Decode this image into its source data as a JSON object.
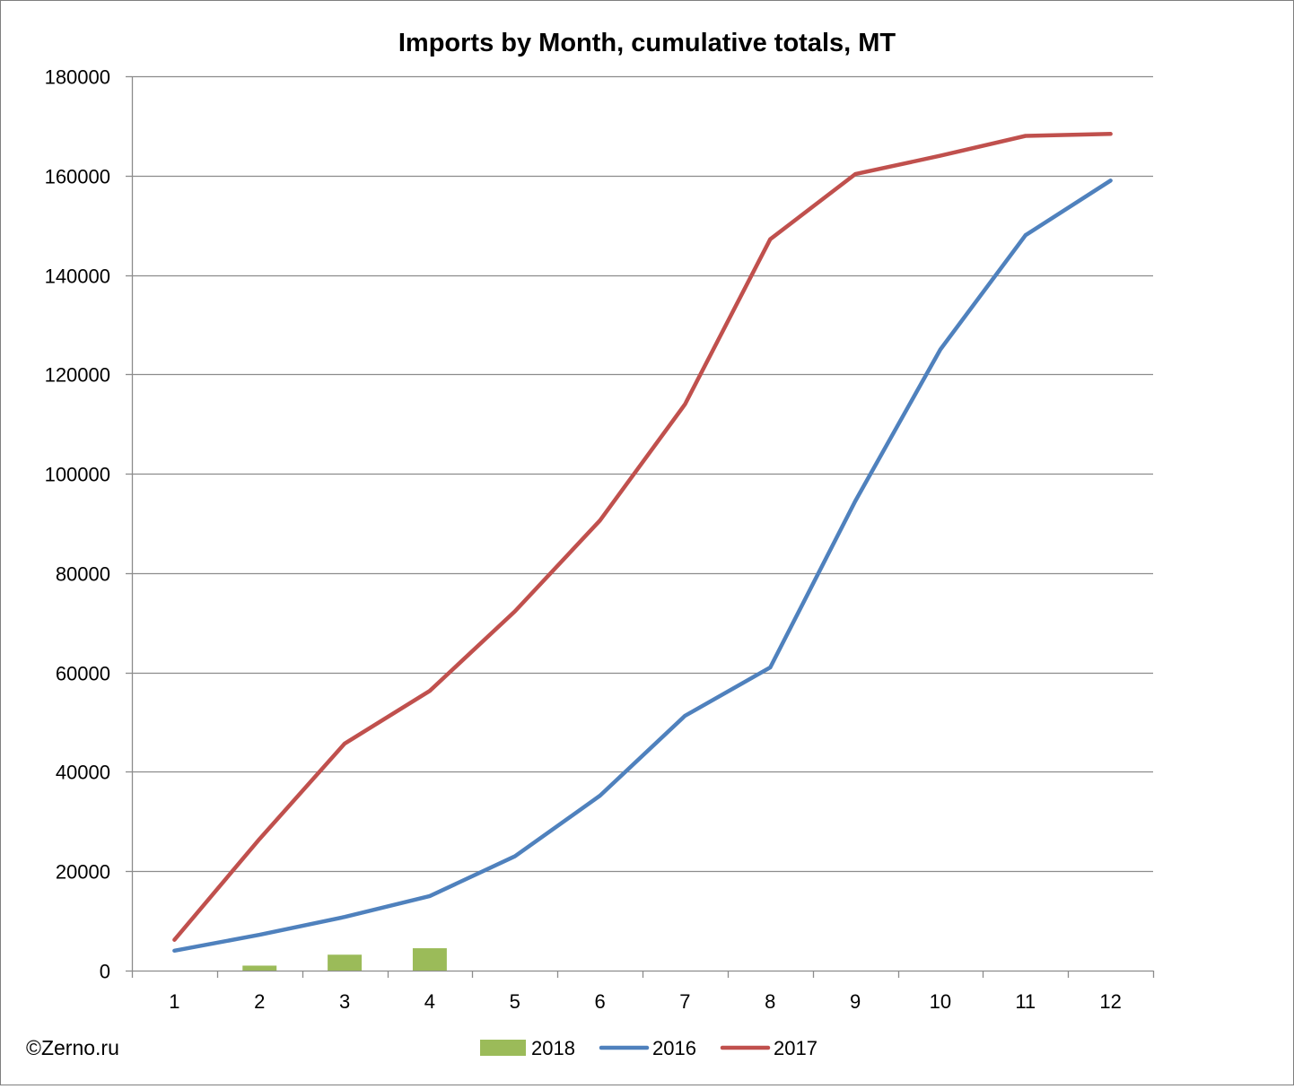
{
  "chart_data": {
    "type": "bar+line",
    "title": "Imports by Month, cumulative totals, MT",
    "categories": [
      "1",
      "2",
      "3",
      "4",
      "5",
      "6",
      "7",
      "8",
      "9",
      "10",
      "11",
      "12"
    ],
    "ylim": [
      0,
      180000
    ],
    "y_ticks": [
      "0",
      "20000",
      "40000",
      "60000",
      "80000",
      "100000",
      "120000",
      "140000",
      "160000",
      "180000"
    ],
    "grid": true,
    "legend_position": "bottom",
    "series": [
      {
        "name": "2018",
        "kind": "bar",
        "color": "#9bbb59",
        "values": [
          null,
          1000,
          3200,
          4500,
          null,
          null,
          null,
          null,
          null,
          null,
          null,
          null
        ]
      },
      {
        "name": "2016",
        "kind": "line",
        "color": "#4f81bd",
        "values": [
          4000,
          7200,
          10800,
          15000,
          23000,
          35200,
          51300,
          61000,
          94500,
          125000,
          148000,
          159000
        ]
      },
      {
        "name": "2017",
        "kind": "line",
        "color": "#c0504d",
        "values": [
          6200,
          26500,
          45700,
          56300,
          72300,
          90600,
          114000,
          147200,
          160300,
          164000,
          168000,
          168400
        ]
      }
    ]
  },
  "watermark": "©Zerno.ru"
}
